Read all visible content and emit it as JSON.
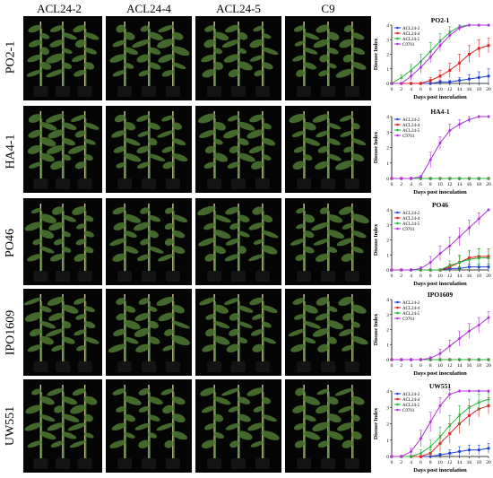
{
  "columns": [
    "ACL24-2",
    "ACL24-4",
    "ACL24-5",
    "C9"
  ],
  "rows": [
    {
      "label": "PO2-1"
    },
    {
      "label": "HA4-1"
    },
    {
      "label": "PO46"
    },
    {
      "label": "IPO1609"
    },
    {
      "label": "UW551"
    }
  ],
  "colors": {
    "ACL24-2": "#1f3fd6",
    "ACL24-4": "#e02020",
    "ACL24-5": "#22b43a",
    "C9701": "#b030e0",
    "photo_bg": "#050505",
    "foliage": "#4f7a34",
    "stake": "#d8c9a0",
    "pot": "#141414"
  },
  "chart_data": [
    {
      "type": "line",
      "title": "PO2-1",
      "xlabel": "Days post inoculation",
      "ylabel": "Disease Index",
      "x": [
        0,
        2,
        4,
        6,
        8,
        10,
        12,
        14,
        16,
        18,
        20
      ],
      "xlim": [
        0,
        20
      ],
      "ylim": [
        0,
        4
      ],
      "yticks": [
        0,
        1,
        2,
        3,
        4
      ],
      "legend_position": "top-left",
      "series": [
        {
          "name": "ACL24-2",
          "values": [
            0,
            0,
            0,
            0,
            0,
            0.1,
            0.1,
            0.2,
            0.3,
            0.4,
            0.5
          ],
          "errors": [
            0,
            0,
            0,
            0,
            0,
            0.1,
            0.1,
            0.2,
            0.3,
            0.4,
            0.5
          ]
        },
        {
          "name": "ACL24-4",
          "values": [
            0,
            0,
            0,
            0,
            0.2,
            0.5,
            0.9,
            1.4,
            2.0,
            2.4,
            2.6
          ],
          "errors": [
            0,
            0,
            0,
            0,
            0.2,
            0.4,
            0.5,
            0.6,
            0.6,
            0.6,
            0.5
          ]
        },
        {
          "name": "ACL24-5",
          "values": [
            0,
            0.4,
            0.9,
            1.5,
            2.2,
            2.9,
            3.5,
            3.9,
            4,
            4,
            4
          ],
          "errors": [
            0,
            0.2,
            0.4,
            0.5,
            0.6,
            0.5,
            0.4,
            0.1,
            0,
            0,
            0
          ]
        },
        {
          "name": "C9701",
          "values": [
            0,
            0,
            0.5,
            1.1,
            1.8,
            2.6,
            3.3,
            3.8,
            4,
            4,
            4
          ],
          "errors": [
            0,
            0,
            0.3,
            0.4,
            0.4,
            0.4,
            0.3,
            0.2,
            0,
            0,
            0
          ]
        }
      ]
    },
    {
      "type": "line",
      "title": "HA4-1",
      "xlabel": "Days post inoculation",
      "ylabel": "Disease Index",
      "x": [
        0,
        2,
        4,
        6,
        8,
        10,
        12,
        14,
        16,
        18,
        20
      ],
      "xlim": [
        0,
        20
      ],
      "ylim": [
        0,
        4
      ],
      "yticks": [
        0,
        1,
        2,
        3,
        4
      ],
      "legend_position": "top-left",
      "series": [
        {
          "name": "ACL24-2",
          "values": [
            0,
            0,
            0,
            0,
            0,
            0,
            0,
            0,
            0,
            0,
            0
          ],
          "errors": [
            0,
            0,
            0,
            0,
            0,
            0,
            0,
            0,
            0,
            0,
            0
          ]
        },
        {
          "name": "ACL24-4",
          "values": [
            0,
            0,
            0,
            0,
            0,
            0,
            0,
            0,
            0,
            0,
            0
          ],
          "errors": [
            0,
            0,
            0,
            0,
            0,
            0,
            0,
            0,
            0,
            0,
            0
          ]
        },
        {
          "name": "ACL24-5",
          "values": [
            0,
            0,
            0,
            0,
            0,
            0,
            0,
            0,
            0,
            0,
            0
          ],
          "errors": [
            0,
            0,
            0,
            0,
            0,
            0,
            0,
            0,
            0,
            0,
            0
          ]
        },
        {
          "name": "C9701",
          "values": [
            0,
            0,
            0,
            0.1,
            1.2,
            2.3,
            3.1,
            3.5,
            3.8,
            4,
            4
          ],
          "errors": [
            0,
            0,
            0,
            0.1,
            0.5,
            0.4,
            0.4,
            0.3,
            0.2,
            0,
            0
          ]
        }
      ]
    },
    {
      "type": "line",
      "title": "PO46",
      "xlabel": "Days post inoculation",
      "ylabel": "Disease Index",
      "x": [
        0,
        2,
        4,
        6,
        8,
        10,
        12,
        14,
        16,
        18,
        20
      ],
      "xlim": [
        0,
        20
      ],
      "ylim": [
        0,
        4
      ],
      "yticks": [
        0,
        1,
        2,
        3,
        4
      ],
      "legend_position": "top-left",
      "series": [
        {
          "name": "ACL24-2",
          "values": [
            0,
            0,
            0,
            0,
            0,
            0,
            0.1,
            0.1,
            0.2,
            0.2,
            0.2
          ],
          "errors": [
            0,
            0,
            0,
            0,
            0,
            0,
            0.1,
            0.1,
            0.2,
            0.2,
            0.2
          ]
        },
        {
          "name": "ACL24-4",
          "values": [
            0,
            0,
            0,
            0,
            0,
            0,
            0.2,
            0.5,
            0.8,
            0.9,
            0.9
          ],
          "errors": [
            0,
            0,
            0,
            0,
            0,
            0,
            0.2,
            0.4,
            0.5,
            0.5,
            0.5
          ]
        },
        {
          "name": "ACL24-5",
          "values": [
            0,
            0,
            0,
            0,
            0,
            0,
            0.3,
            0.5,
            0.7,
            0.8,
            0.8
          ],
          "errors": [
            0,
            0,
            0,
            0,
            0,
            0,
            0.3,
            0.5,
            0.6,
            0.6,
            0.6
          ]
        },
        {
          "name": "C9701",
          "values": [
            0,
            0,
            0,
            0.1,
            0.5,
            1.1,
            1.6,
            2.2,
            2.8,
            3.4,
            4
          ],
          "errors": [
            0,
            0,
            0,
            0.1,
            0.4,
            0.5,
            0.6,
            0.6,
            0.5,
            0.4,
            0
          ]
        }
      ]
    },
    {
      "type": "line",
      "title": "IPO1609",
      "xlabel": "Days post inoculation",
      "ylabel": "Disease Index",
      "x": [
        0,
        2,
        4,
        6,
        8,
        10,
        12,
        14,
        16,
        18,
        20
      ],
      "xlim": [
        0,
        20
      ],
      "ylim": [
        0,
        4
      ],
      "yticks": [
        0,
        1,
        2,
        3,
        4
      ],
      "legend_position": "top-left",
      "series": [
        {
          "name": "ACL24-2",
          "values": [
            0,
            0,
            0,
            0,
            0,
            0,
            0,
            0,
            0,
            0,
            0
          ],
          "errors": [
            0,
            0,
            0,
            0,
            0,
            0,
            0,
            0,
            0,
            0,
            0
          ]
        },
        {
          "name": "ACL24-4",
          "values": [
            0,
            0,
            0,
            0,
            0,
            0,
            0,
            0,
            0,
            0,
            0
          ],
          "errors": [
            0,
            0,
            0,
            0,
            0,
            0,
            0,
            0,
            0,
            0,
            0
          ]
        },
        {
          "name": "ACL24-5",
          "values": [
            0,
            0,
            0,
            0,
            0,
            0,
            0,
            0,
            0,
            0,
            0
          ],
          "errors": [
            0,
            0,
            0,
            0,
            0,
            0,
            0,
            0,
            0,
            0,
            0
          ]
        },
        {
          "name": "C9701",
          "values": [
            0,
            0,
            0,
            0,
            0.1,
            0.4,
            0.9,
            1.4,
            1.9,
            2.3,
            2.8
          ],
          "errors": [
            0,
            0,
            0,
            0,
            0.1,
            0.3,
            0.4,
            0.5,
            0.5,
            0.5,
            0.4
          ]
        }
      ]
    },
    {
      "type": "line",
      "title": "UW551",
      "xlabel": "Days post inoculation",
      "ylabel": "Disease Index",
      "x": [
        0,
        2,
        4,
        6,
        8,
        10,
        12,
        14,
        16,
        18,
        20
      ],
      "xlim": [
        0,
        20
      ],
      "ylim": [
        0,
        4
      ],
      "yticks": [
        0,
        1,
        2,
        3,
        4
      ],
      "legend_position": "top-left",
      "series": [
        {
          "name": "ACL24-2",
          "values": [
            0,
            0,
            0,
            0,
            0,
            0.1,
            0.2,
            0.3,
            0.4,
            0.4,
            0.5
          ],
          "errors": [
            0,
            0,
            0,
            0,
            0,
            0.1,
            0.2,
            0.3,
            0.3,
            0.3,
            0.3
          ]
        },
        {
          "name": "ACL24-4",
          "values": [
            0,
            0,
            0,
            0,
            0.2,
            0.8,
            1.4,
            2.0,
            2.5,
            2.9,
            3.1
          ],
          "errors": [
            0,
            0,
            0,
            0,
            0.2,
            0.5,
            0.6,
            0.6,
            0.6,
            0.5,
            0.5
          ]
        },
        {
          "name": "ACL24-5",
          "values": [
            0,
            0,
            0,
            0.2,
            0.6,
            1.2,
            1.9,
            2.5,
            3.0,
            3.3,
            3.5
          ],
          "errors": [
            0,
            0,
            0,
            0.2,
            0.4,
            0.6,
            0.6,
            0.6,
            0.5,
            0.5,
            0.4
          ]
        },
        {
          "name": "C9701",
          "values": [
            0,
            0,
            0.3,
            1.1,
            2.1,
            3.1,
            3.8,
            4,
            4,
            4,
            4
          ],
          "errors": [
            0,
            0,
            0.2,
            0.5,
            0.6,
            0.5,
            0.3,
            0,
            0,
            0,
            0
          ]
        }
      ]
    }
  ]
}
